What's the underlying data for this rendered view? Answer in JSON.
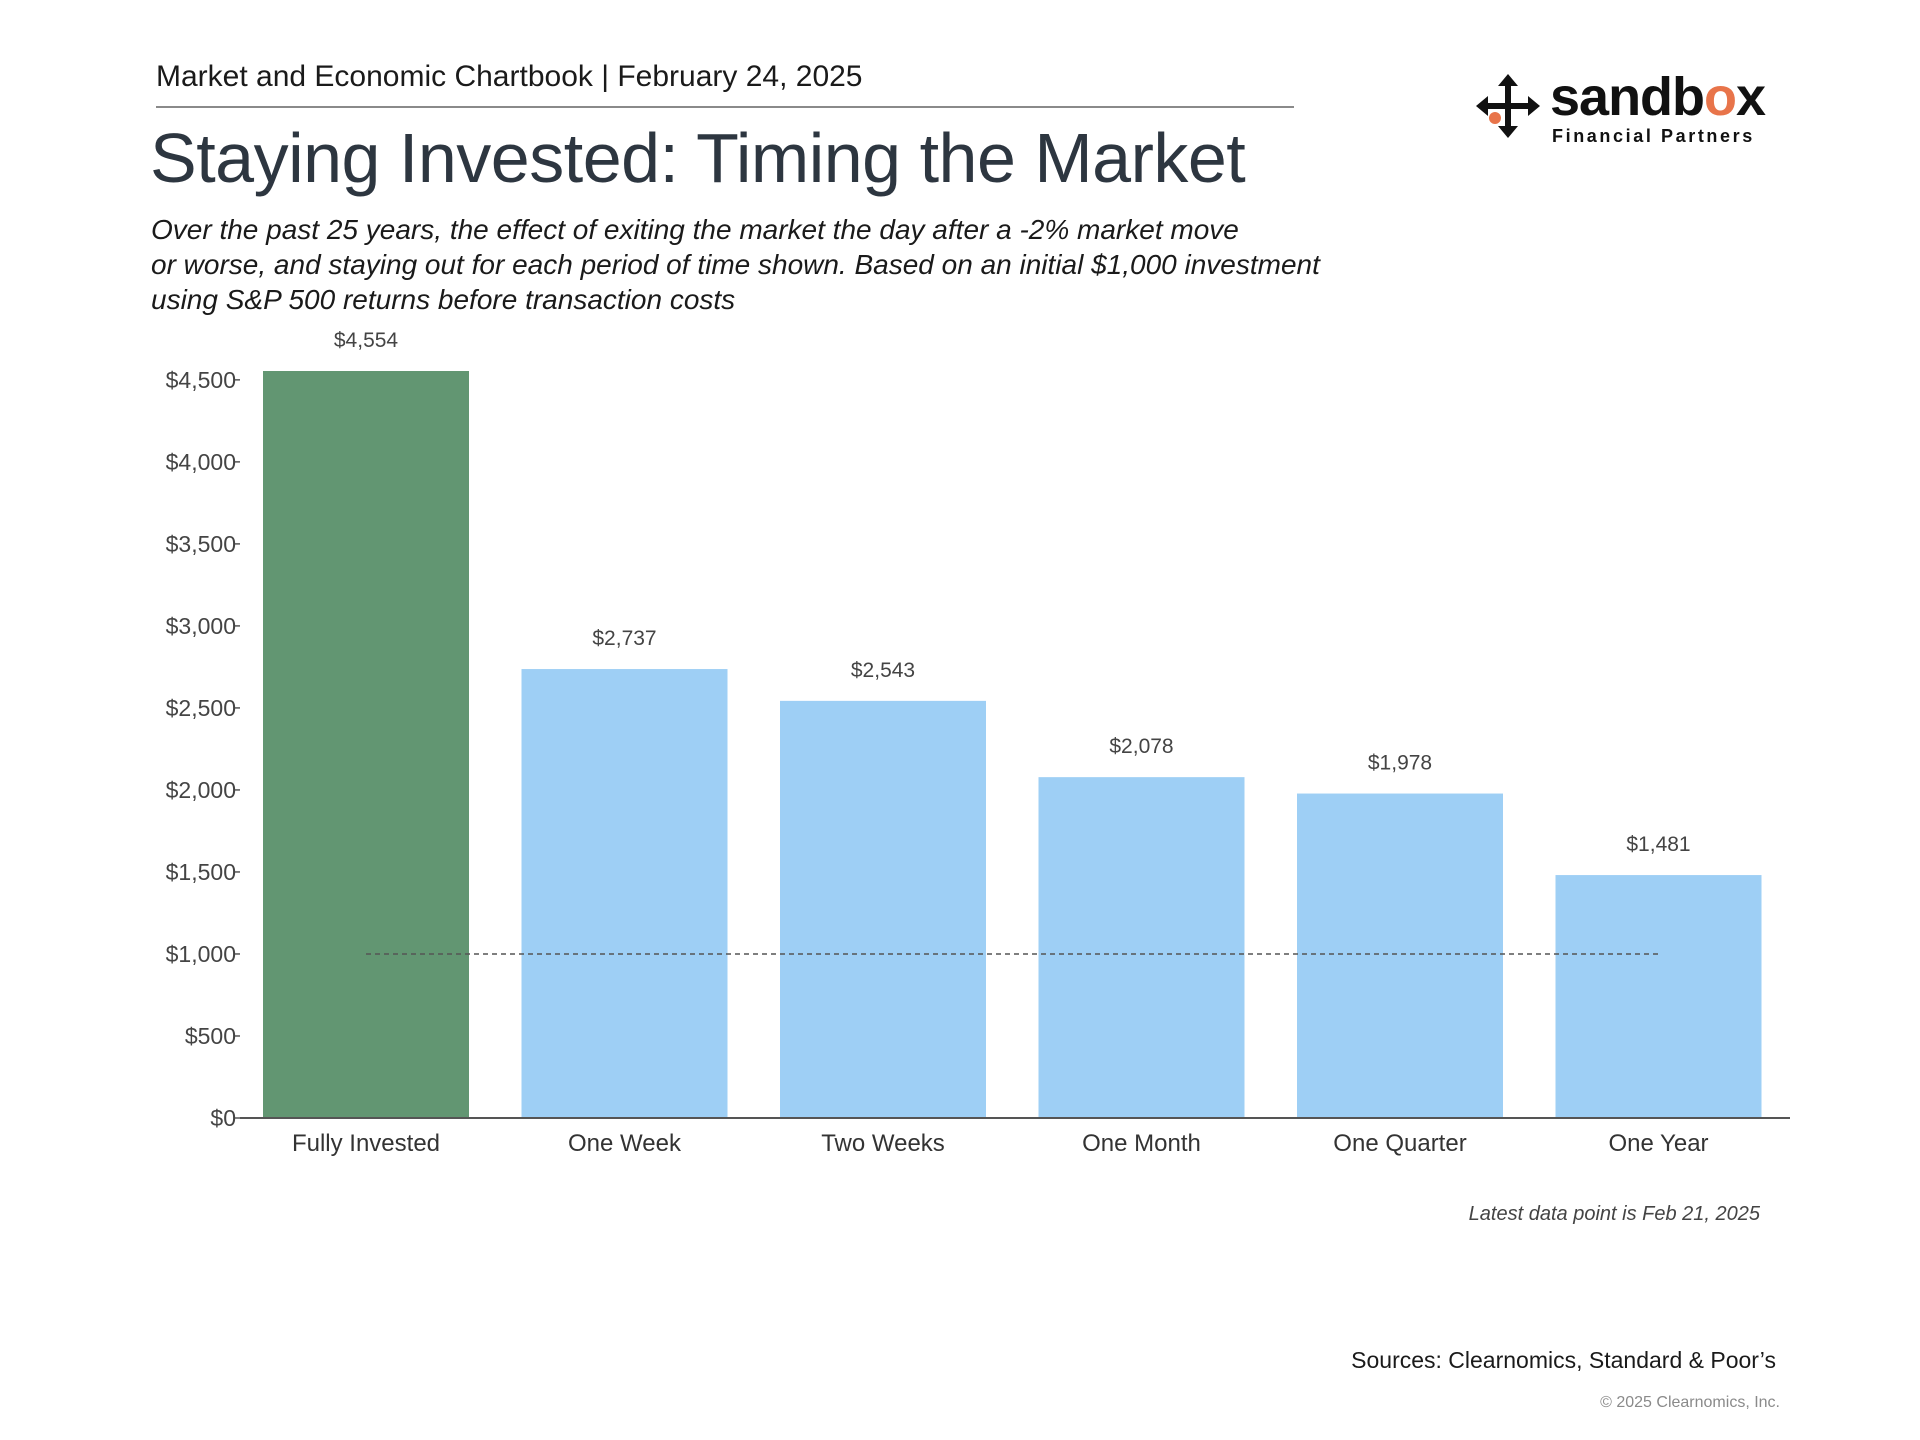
{
  "header": {
    "kicker": "Market and Economic Chartbook | February 24, 2025",
    "title": "Staying Invested: Timing the Market",
    "subtitle_lines": [
      "Over the past 25 years, the effect of exiting the market the day after a -2% market move",
      "or worse, and staying out for each period of time shown. Based on an initial $1,000 investment",
      "using S&P 500 returns before transaction costs"
    ]
  },
  "logo": {
    "name_prefix": "sandb",
    "name_accent": "o",
    "name_suffix": "x",
    "tagline": "Financial Partners",
    "icon": "four-way-arrows-icon",
    "accent_color": "#e8744a"
  },
  "chart_data": {
    "type": "bar",
    "categories": [
      "Fully Invested",
      "One Week",
      "Two Weeks",
      "One Month",
      "One Quarter",
      "One Year"
    ],
    "values": [
      4554,
      2737,
      2543,
      2078,
      1978,
      1481
    ],
    "value_labels": [
      "$4,554",
      "$2,737",
      "$2,543",
      "$2,078",
      "$1,978",
      "$1,481"
    ],
    "bar_colors": [
      "#629672",
      "#9ecff5",
      "#9ecff5",
      "#9ecff5",
      "#9ecff5",
      "#9ecff5"
    ],
    "ylim": [
      0,
      4554
    ],
    "yticks": [
      0,
      500,
      1000,
      1500,
      2000,
      2500,
      3000,
      3500,
      4000,
      4500
    ],
    "ytick_labels": [
      "$0",
      "$500",
      "$1,000",
      "$1,500",
      "$2,000",
      "$2,500",
      "$3,000",
      "$3,500",
      "$4,000",
      "$4,500"
    ],
    "reference_line": {
      "value": 1000,
      "style": "dashed"
    },
    "grid": false,
    "title": "",
    "xlabel": "",
    "ylabel": ""
  },
  "footer": {
    "note": "Latest data point is Feb 21, 2025",
    "sources": "Sources: Clearnomics, Standard & Poor’s",
    "copyright": "© 2025 Clearnomics, Inc."
  }
}
